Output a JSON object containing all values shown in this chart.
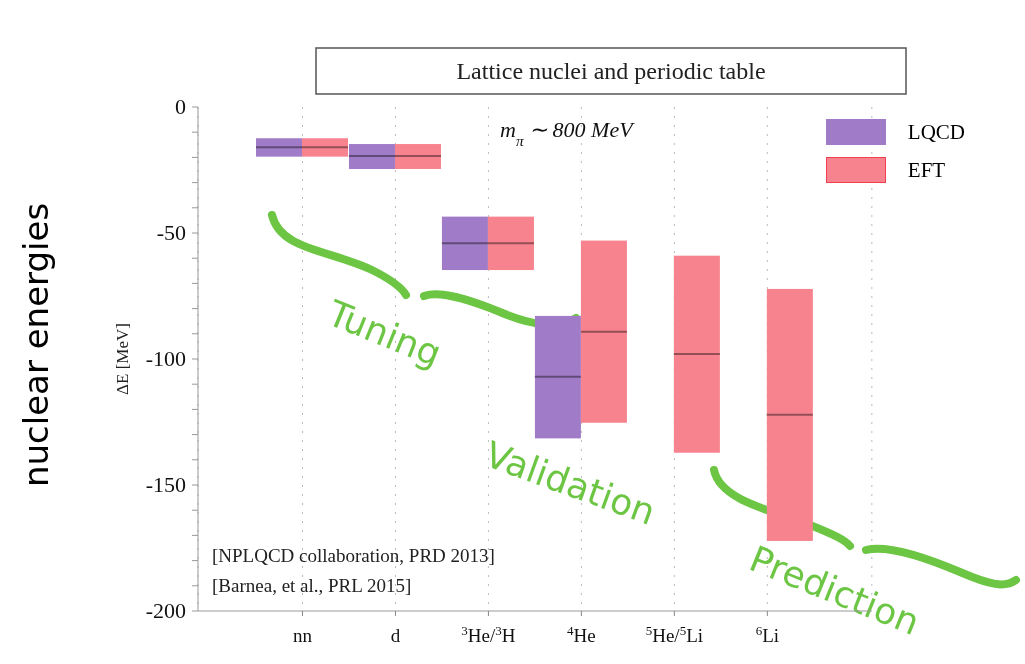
{
  "chart_data": {
    "type": "box",
    "title": "Lattice nuclei and periodic table",
    "ylabel": "ΔE [MeV]",
    "categories": [
      "nn",
      "d",
      "$^{3}$He/$^{3}$H",
      "$^{4}$He",
      "$^{5}$He/$^{5}$Li",
      "$^{6}$Li"
    ],
    "series": [
      {
        "name": "LQCD",
        "color": "#a07cc8",
        "boxes": [
          {
            "low": -19.7,
            "q1": -19.7,
            "median": -16.0,
            "q3": -12.4,
            "high": -12.4
          },
          {
            "low": -24.6,
            "q1": -24.6,
            "median": -19.4,
            "q3": -14.7,
            "high": -14.7
          },
          {
            "low": -64.7,
            "q1": -64.7,
            "median": -54.1,
            "q3": -43.5,
            "high": -43.5
          },
          {
            "low": -131.5,
            "q1": -131.5,
            "median": -107.0,
            "q3": -82.9,
            "high": -82.9
          },
          null,
          null
        ]
      },
      {
        "name": "EFT",
        "color": "#f7838f",
        "boxes": [
          {
            "low": -19.7,
            "q1": -19.7,
            "median": -16.0,
            "q3": -12.4,
            "high": -12.4
          },
          {
            "low": -24.6,
            "q1": -24.6,
            "median": -19.4,
            "q3": -14.7,
            "high": -14.7
          },
          {
            "low": -64.7,
            "q1": -64.7,
            "median": -54.1,
            "q3": -43.5,
            "high": -43.5
          },
          {
            "low": -125.3,
            "q1": -125.3,
            "median": -89.2,
            "q3": -53.0,
            "high": -53.0
          },
          {
            "low": -137.2,
            "q1": -137.2,
            "median": -98.0,
            "q3": -59.0,
            "high": -59.0
          },
          {
            "low": -172.2,
            "q1": -172.2,
            "median": -122.1,
            "q3": -72.2,
            "high": -72.2
          }
        ]
      }
    ],
    "ylim": [
      -200,
      0
    ],
    "yticks": [
      -200,
      {
        "value": -190,
        "label": null
      },
      {
        "value": -180,
        "label": null
      },
      {
        "value": -170,
        "label": null
      },
      {
        "value": -160,
        "label": null
      },
      -150,
      {
        "value": -140,
        "label": null
      },
      {
        "value": -130,
        "label": null
      },
      {
        "value": -120,
        "label": null
      },
      {
        "value": -110,
        "label": null
      },
      -100,
      {
        "value": -90,
        "label": null
      },
      {
        "value": -80,
        "label": null
      },
      {
        "value": -70,
        "label": null
      },
      {
        "value": -60,
        "label": null
      },
      -50,
      {
        "value": -40,
        "label": null
      },
      {
        "value": -30,
        "label": null
      },
      {
        "value": -20,
        "label": null
      },
      {
        "value": -10,
        "label": null
      },
      0
    ],
    "grid": "x",
    "legend": "top right",
    "annotations": [
      "m$_{π}$ ∼ 800 MeV",
      "[NPLQCD collaboration, PRD 2013]",
      "[Barnea, et al., PRL 2015]",
      "nuclear energies",
      "Tuning",
      "Validation",
      "Prediction"
    ]
  }
}
